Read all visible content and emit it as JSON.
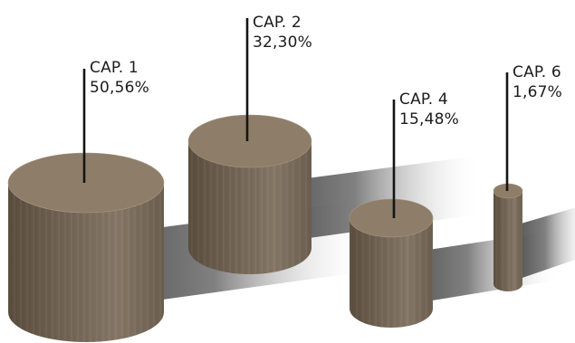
{
  "chart_data": {
    "type": "3d-cylinder",
    "series": [
      {
        "name": "CAP. 1",
        "label": "CAP. 1",
        "value": 50.56,
        "value_label": "50,56%"
      },
      {
        "name": "CAP. 2",
        "label": "CAP. 2",
        "value": 32.3,
        "value_label": "32,30%"
      },
      {
        "name": "CAP. 4",
        "label": "CAP. 4",
        "value": 15.48,
        "value_label": "15,48%"
      },
      {
        "name": "CAP. 6",
        "label": "CAP. 6",
        "value": 1.67,
        "value_label": "1,67%"
      }
    ],
    "colors": {
      "cylinder_top": "#8d7d69",
      "cylinder_body_dark": "#5c4f40",
      "cylinder_body_mid": "#76685a",
      "cylinder_body_light": "#897a68",
      "shadow": "#2e2e2e",
      "leader_line": "#151515"
    }
  }
}
